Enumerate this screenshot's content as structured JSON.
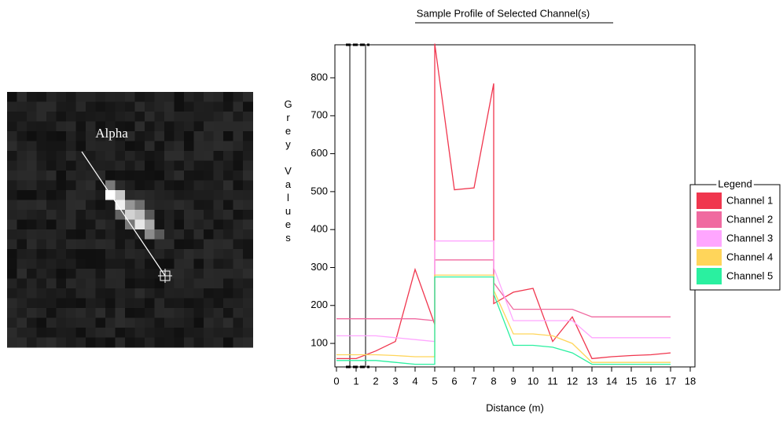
{
  "image_panel": {
    "label": "Alpha"
  },
  "chart_data": {
    "type": "line",
    "title": "Sample Profile of Selected Channel(s)",
    "x_label": "Distance (m)",
    "y_label": "Grey Values",
    "legend_title": "Legend",
    "x": [
      0,
      1,
      2,
      3,
      4,
      5,
      5,
      6,
      7,
      8,
      8,
      9,
      10,
      11,
      12,
      13,
      14,
      15,
      16,
      17
    ],
    "xlim": [
      0,
      18
    ],
    "xticks": [
      0,
      1,
      2,
      3,
      4,
      5,
      6,
      7,
      8,
      9,
      10,
      11,
      12,
      13,
      14,
      15,
      16,
      17,
      18
    ],
    "ylim": [
      38,
      887
    ],
    "yticks": [
      100,
      200,
      300,
      400,
      500,
      600,
      700,
      800
    ],
    "series": [
      {
        "name": "Channel 1",
        "color": "#f0364e",
        "values": [
          60,
          60,
          80,
          105,
          295,
          150,
          890,
          505,
          510,
          785,
          205,
          235,
          245,
          105,
          170,
          60,
          65,
          68,
          70,
          75
        ]
      },
      {
        "name": "Channel 2",
        "color": "#f06aa0",
        "values": [
          165,
          165,
          165,
          165,
          165,
          160,
          320,
          320,
          320,
          320,
          260,
          190,
          190,
          190,
          190,
          170,
          170,
          170,
          170,
          170
        ]
      },
      {
        "name": "Channel 3",
        "color": "#ffa6ff",
        "values": [
          120,
          120,
          120,
          115,
          110,
          105,
          370,
          370,
          370,
          370,
          300,
          160,
          160,
          160,
          160,
          115,
          115,
          115,
          115,
          115
        ]
      },
      {
        "name": "Channel 4",
        "color": "#ffd55a",
        "values": [
          70,
          70,
          70,
          68,
          65,
          65,
          280,
          280,
          280,
          280,
          240,
          125,
          125,
          120,
          100,
          50,
          50,
          50,
          50,
          50
        ]
      },
      {
        "name": "Channel 5",
        "color": "#2af0a0",
        "values": [
          55,
          55,
          55,
          50,
          45,
          45,
          275,
          275,
          275,
          275,
          230,
          95,
          95,
          90,
          75,
          45,
          45,
          45,
          45,
          45
        ]
      }
    ]
  }
}
